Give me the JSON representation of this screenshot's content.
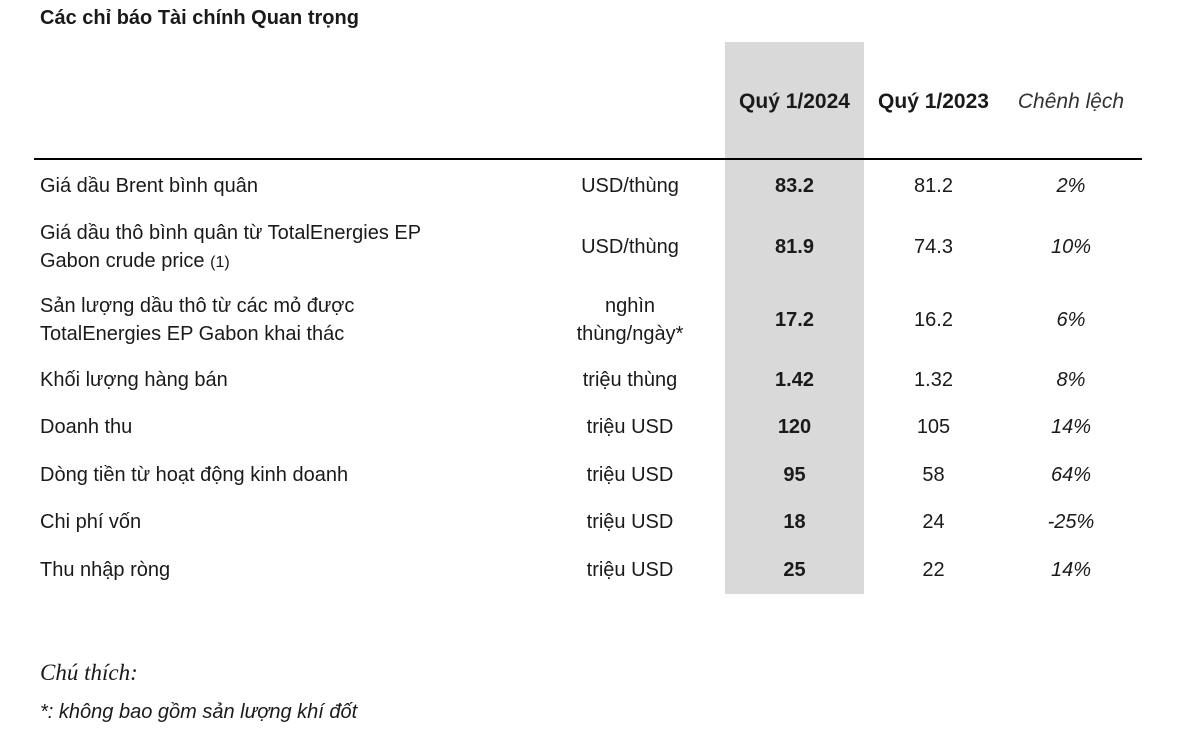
{
  "title": "Các chỉ báo Tài chính Quan trọng",
  "headers": {
    "q1_2024": "Quý 1/2024",
    "q1_2023": "Quý 1/2023",
    "diff": "Chênh lệch"
  },
  "rows": [
    {
      "label": "Giá dầu Brent bình quân",
      "unit": "USD/thùng",
      "v2024": "83.2",
      "v2023": "81.2",
      "diff": "2%"
    },
    {
      "label": "Giá dầu thô bình quân từ TotalEnergies EP",
      "label2": "Gabon crude price",
      "label_ref": "(1)",
      "unit": "USD/thùng",
      "v2024": "81.9",
      "v2023": "74.3",
      "diff": "10%"
    },
    {
      "label": "Sản lượng dầu thô từ các mỏ được",
      "label2": "TotalEnergies EP Gabon khai thác",
      "unit": "nghìn",
      "unit2": "thùng/ngày*",
      "v2024": "17.2",
      "v2023": "16.2",
      "diff": "6%"
    },
    {
      "label": "Khối lượng hàng bán",
      "unit": "triệu thùng",
      "v2024": "1.42",
      "v2023": "1.32",
      "diff": "8%"
    },
    {
      "label": "Doanh thu",
      "unit": "triệu USD",
      "v2024": "120",
      "v2023": "105",
      "diff": "14%"
    },
    {
      "label": "Dòng tiền từ hoạt động kinh doanh",
      "unit": "triệu USD",
      "v2024": "95",
      "v2023": "58",
      "diff": "64%"
    },
    {
      "label": "Chi phí vốn",
      "unit": "triệu USD",
      "v2024": "18",
      "v2023": "24",
      "diff": "-25%"
    },
    {
      "label": "Thu nhập ròng",
      "unit": "triệu USD",
      "v2024": "25",
      "v2023": "22",
      "diff": "14%"
    }
  ],
  "notes": {
    "title": "Chú thích:",
    "text": "*: không bao gồm sản lượng khí đốt"
  }
}
